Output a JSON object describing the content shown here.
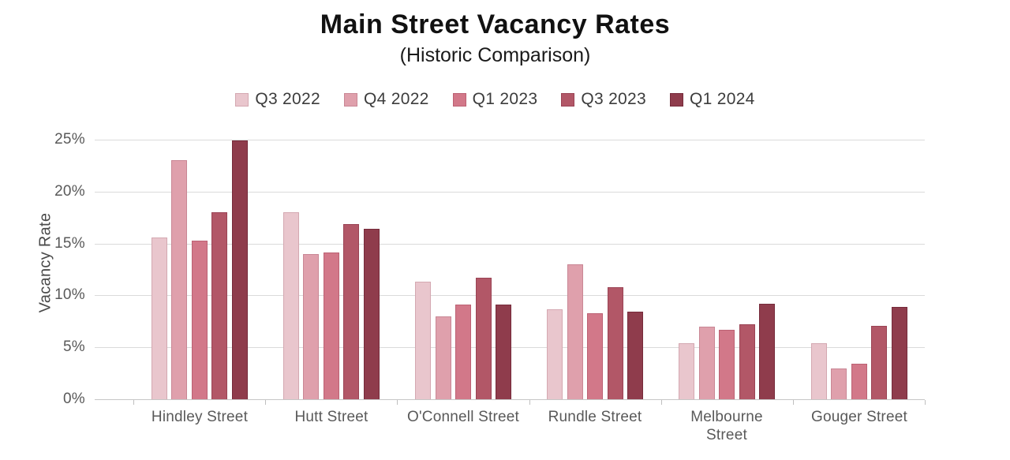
{
  "chart_data": {
    "type": "bar",
    "title": "Main Street Vacancy Rates",
    "subtitle": "(Historic Comparison)",
    "ylabel": "Vacancy Rate",
    "ylim": [
      0,
      25
    ],
    "ytick_step": 5,
    "ytick_labels": [
      "0%",
      "5%",
      "10%",
      "15%",
      "20%",
      "25%"
    ],
    "grid": true,
    "legend_position": "top-center",
    "categories": [
      "Hindley Street",
      "Hutt Street",
      "O'Connell Street",
      "Rundle Street",
      "Melbourne\nStreet",
      "Gouger Street"
    ],
    "series": [
      {
        "name": "Q3 2022",
        "color": "#E9C6CD",
        "border": "#D4A8B1",
        "values": [
          15.6,
          18.0,
          11.3,
          8.7,
          5.4,
          5.4
        ]
      },
      {
        "name": "Q4 2022",
        "color": "#DFA0AC",
        "border": "#C98795",
        "values": [
          23.0,
          14.0,
          8.0,
          13.0,
          7.0,
          3.0
        ]
      },
      {
        "name": "Q1 2023",
        "color": "#D27889",
        "border": "#BC6173",
        "values": [
          15.3,
          14.1,
          9.1,
          8.3,
          6.7,
          3.4
        ]
      },
      {
        "name": "Q3 2023",
        "color": "#B25767",
        "border": "#9A4354",
        "values": [
          18.0,
          16.9,
          11.7,
          10.8,
          7.2,
          7.1
        ]
      },
      {
        "name": "Q1 2024",
        "color": "#8F3C4C",
        "border": "#762B3B",
        "values": [
          24.9,
          16.4,
          9.1,
          8.4,
          9.2,
          8.9
        ]
      }
    ]
  }
}
